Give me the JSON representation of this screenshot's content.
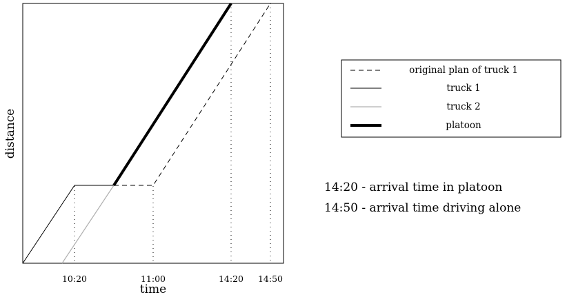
{
  "chart_data": {
    "type": "line",
    "xlabel": "time",
    "ylabel": "distance",
    "x_ticks": [
      "10:20",
      "11:00",
      "14:20",
      "14:50"
    ],
    "series": [
      {
        "name": "original plan of truck 1",
        "style": "dashed",
        "color": "#000000"
      },
      {
        "name": "truck 1",
        "style": "solid",
        "color": "#000000"
      },
      {
        "name": "truck 2",
        "style": "solid",
        "color": "#b0b0b0"
      },
      {
        "name": "platoon",
        "style": "bold",
        "color": "#000000"
      }
    ]
  },
  "annotations": [
    "14:20 - arrival time in platoon",
    "14:50 - arrival time driving alone"
  ]
}
